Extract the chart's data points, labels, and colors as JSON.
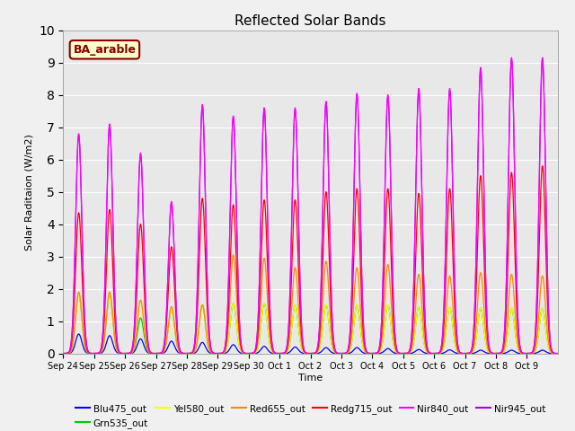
{
  "title": "Reflected Solar Bands",
  "ylabel": "Solar Raditaion (W/m2)",
  "xlabel": "Time",
  "ylim": [
    0,
    10.0
  ],
  "background_color": "#e8e8e8",
  "annotation_text": "BA_arable",
  "annotation_bg": "#ffffcc",
  "annotation_border": "#8B0000",
  "legend_entries": [
    "Blu475_out",
    "Grn535_out",
    "Yel580_out",
    "Red655_out",
    "Redg715_out",
    "Nir840_out",
    "Nir945_out"
  ],
  "colors": {
    "Blu475_out": "#0000ff",
    "Grn535_out": "#00cc00",
    "Yel580_out": "#ffff00",
    "Red655_out": "#ff8800",
    "Redg715_out": "#ff0000",
    "Nir840_out": "#ff00ff",
    "Nir945_out": "#aa00ee"
  },
  "tick_labels": [
    "Sep 24",
    "Sep 25",
    "Sep 26",
    "Sep 27",
    "Sep 28",
    "Sep 29",
    "Sep 30",
    "Oct 1",
    "Oct 2",
    "Oct 3",
    "Oct 4",
    "Oct 5",
    "Oct 6",
    "Oct 7",
    "Oct 8",
    "Oct 9"
  ],
  "num_days": 16,
  "peaks": {
    "Blu475_out": [
      0.6,
      0.55,
      0.45,
      0.38,
      0.34,
      0.27,
      0.22,
      0.2,
      0.18,
      0.18,
      0.15,
      0.12,
      0.11,
      0.1,
      0.1,
      0.1
    ],
    "Grn535_out": [
      1.85,
      1.85,
      1.1,
      1.35,
      1.5,
      1.55,
      1.55,
      1.5,
      1.5,
      1.5,
      1.5,
      1.45,
      1.42,
      1.4,
      1.4,
      1.4
    ],
    "Yel580_out": [
      1.85,
      1.85,
      1.6,
      1.35,
      1.5,
      1.55,
      1.55,
      1.5,
      1.5,
      1.5,
      1.5,
      1.45,
      1.42,
      1.4,
      1.4,
      1.4
    ],
    "Red655_out": [
      1.9,
      1.9,
      1.65,
      1.45,
      1.5,
      3.05,
      2.95,
      2.65,
      2.85,
      2.65,
      2.75,
      2.45,
      2.4,
      2.5,
      2.45,
      2.4
    ],
    "Redg715_out": [
      4.35,
      4.45,
      4.0,
      3.3,
      4.8,
      4.6,
      4.75,
      4.75,
      5.0,
      5.1,
      5.1,
      4.95,
      5.1,
      5.5,
      5.6,
      5.8
    ],
    "Nir840_out": [
      6.8,
      7.1,
      6.2,
      4.7,
      7.7,
      7.35,
      7.6,
      7.6,
      7.8,
      8.05,
      8.0,
      8.2,
      8.2,
      8.85,
      9.15,
      9.15
    ],
    "Nir945_out": [
      6.75,
      7.05,
      6.15,
      4.65,
      7.65,
      7.3,
      7.55,
      7.55,
      7.75,
      8.0,
      7.95,
      8.15,
      8.15,
      8.8,
      9.1,
      9.1
    ]
  }
}
